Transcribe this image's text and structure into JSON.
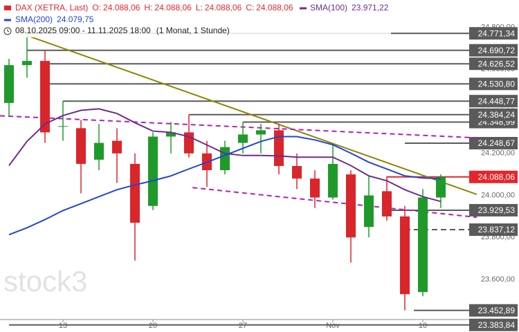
{
  "header": {
    "instrument": "DAX (XETRA, Last)",
    "ohlc": [
      {
        "key": "O:",
        "value": "24.088,06"
      },
      {
        "key": "H:",
        "value": "24.088,06"
      },
      {
        "key": "L:",
        "value": "24.088,06"
      },
      {
        "key": "C:",
        "value": "24.088,06"
      }
    ],
    "sma100": {
      "name": "SMA(100)",
      "value": "23.971,22"
    },
    "sma200": {
      "name": "SMA(200)",
      "value": "24.079,75"
    },
    "range": "08.10.2025 09:00 - 11.11.2025 18:00",
    "period": "(1 Monat, 1 Stunde)"
  },
  "watermark": "stock3",
  "chart_data": {
    "type": "candlestick",
    "categories": [
      null,
      null,
      null,
      "13",
      null,
      null,
      null,
      null,
      "20",
      null,
      null,
      null,
      null,
      "27",
      null,
      null,
      null,
      null,
      "Nov",
      null,
      null,
      null,
      null,
      "10",
      null
    ],
    "open": [
      24440,
      24620,
      24640,
      24330,
      24320,
      24170,
      24260,
      24150,
      23950,
      24280,
      24300,
      24200,
      24120,
      24250,
      24290,
      24310,
      24140,
      24080,
      23990,
      24100,
      23850,
      24020,
      23900,
      23540,
      23990
    ],
    "high": [
      24650,
      24771,
      24690,
      24450,
      24360,
      24340,
      24320,
      24200,
      24300,
      24350,
      24384,
      24260,
      24260,
      24349,
      24340,
      24340,
      24200,
      24120,
      24240,
      24120,
      24090,
      24090,
      23950,
      24030,
      24100
    ],
    "low": [
      24380,
      24560,
      24250,
      24260,
      24010,
      24120,
      24060,
      23690,
      23930,
      24200,
      24180,
      24040,
      24100,
      24200,
      24200,
      24100,
      24030,
      23940,
      23980,
      23680,
      23800,
      23880,
      23453,
      23520,
      23940
    ],
    "close": [
      24620,
      24640,
      24300,
      24330,
      24150,
      24250,
      24200,
      23870,
      24280,
      24300,
      24200,
      24120,
      24230,
      24290,
      24310,
      24140,
      24080,
      23990,
      24150,
      23800,
      24000,
      23900,
      23530,
      23990,
      24088.06
    ],
    "up_color": "#1f9a2a",
    "down_color": "#d9262b",
    "series": [
      {
        "name": "SMA(100)",
        "color": "#6b2d90",
        "values": [
          24142,
          24257,
          24340,
          24380,
          24405,
          24412,
          24390,
          24346,
          24306,
          24300,
          24280,
          24240,
          24200,
          24190,
          24190,
          24188,
          24182,
          24182,
          24182,
          24142,
          24093,
          24070,
          24027,
          23994,
          23971.22
        ]
      },
      {
        "name": "SMA(200)",
        "color": "#2343d8",
        "values": [
          23813,
          23846,
          23885,
          23928,
          23961,
          23994,
          24027,
          24050,
          24070,
          24093,
          24126,
          24158,
          24191,
          24224,
          24257,
          24280,
          24280,
          24264,
          24241,
          24201,
          24158,
          24126,
          24093,
          24083,
          24079.75
        ]
      }
    ],
    "ylim": [
      23350,
      24930
    ],
    "yticks": [
      {
        "value": 23600,
        "label": "23.600,00"
      },
      {
        "value": 23800,
        "label": "23.800,00"
      },
      {
        "value": 24000,
        "label": "24.000,00"
      },
      {
        "value": 24200,
        "label": "24.200,00"
      },
      {
        "value": 24400,
        "label": "24.400,00"
      },
      {
        "value": 24600,
        "label": "24.600,00"
      },
      {
        "value": 24800,
        "label": "24.800,00"
      }
    ],
    "levels": [
      {
        "value": 24348.99,
        "label": "24.348,99",
        "from": 13,
        "color": "#5a5a5a",
        "dashed": false
      },
      {
        "value": 24771.34,
        "label": "24.771,34",
        "from": 1,
        "color": "#5a5a5a",
        "dashed": false
      },
      {
        "value": 24690.72,
        "label": "24.690,72",
        "from": 1,
        "color": "#5a5a5a",
        "dashed": false
      },
      {
        "value": 24626.52,
        "label": "24.626,52",
        "from": 2,
        "color": "#5a5a5a",
        "dashed": false
      },
      {
        "value": 24530.8,
        "label": "24.530,80",
        "from": 2,
        "color": "#5a5a5a",
        "dashed": false
      },
      {
        "value": 24448.77,
        "label": "24.448,77",
        "from": 3,
        "color": "#5a5a5a",
        "dashed": false
      },
      {
        "value": 24384.24,
        "label": "24.384,24",
        "from": 10,
        "color": "#5a5a5a",
        "dashed": false
      },
      {
        "value": 24248.67,
        "label": "24.248,67",
        "from": 22,
        "color": "#5a5a5a",
        "dashed": false
      },
      {
        "value": 24088.06,
        "label": "24.088,06",
        "from": 21,
        "color": "#e3262b",
        "dashed": false
      },
      {
        "value": 23929.53,
        "label": "23.929,53",
        "from": 21,
        "color": "#5a5a5a",
        "dashed": false
      },
      {
        "value": 23837.12,
        "label": "23.837,12",
        "from": 22,
        "color": "#5a5a5a",
        "dashed": true
      },
      {
        "value": 23452.89,
        "label": "23.452,89",
        "from": 22.5,
        "color": "#5a5a5a",
        "dashed": false
      },
      {
        "value": 23383.84,
        "label": "23.383,84",
        "from": 0,
        "color": "#5a5a5a",
        "dashed": false
      }
    ],
    "trendlines": [
      {
        "color": "#8c8500",
        "dashed": false,
        "points": [
          [
            1.0,
            24761
          ],
          [
            26.0,
            24005
          ]
        ]
      },
      {
        "color": "#b21fb8",
        "dashed": true,
        "points": [
          [
            -0.5,
            24379
          ],
          [
            26.0,
            24274
          ]
        ]
      },
      {
        "color": "#b21fb8",
        "dashed": true,
        "points": [
          [
            10.2,
            24037
          ],
          [
            26.0,
            23896
          ]
        ]
      }
    ]
  }
}
